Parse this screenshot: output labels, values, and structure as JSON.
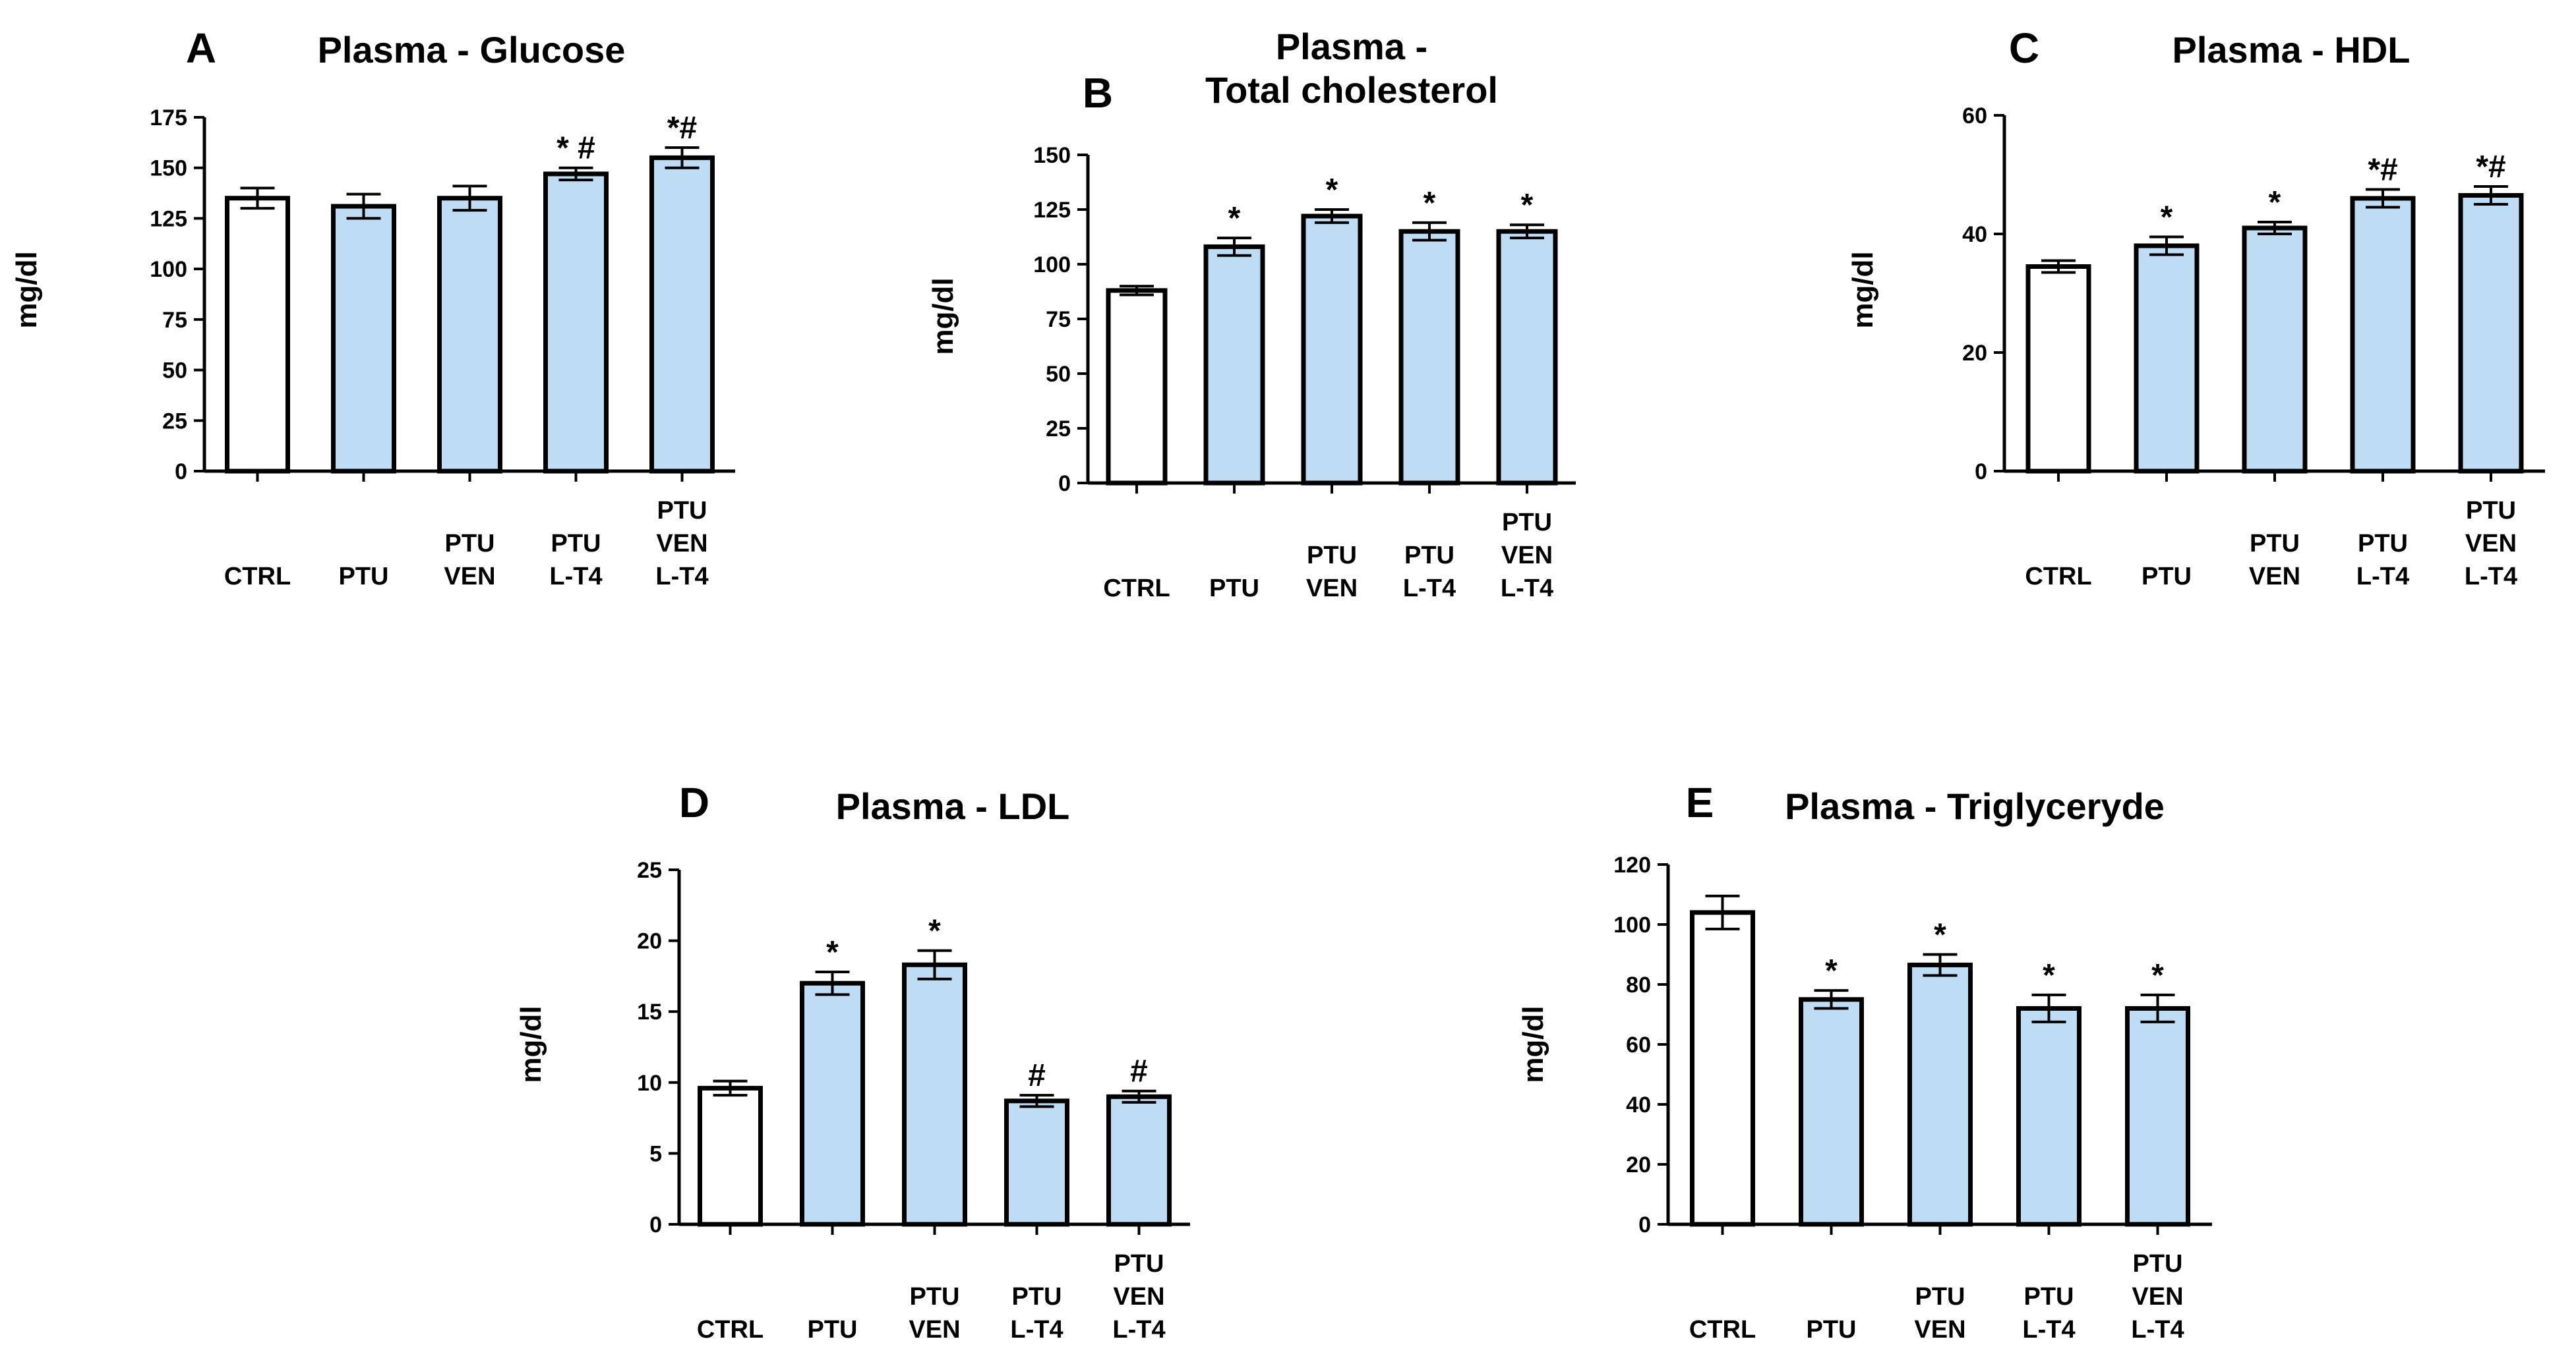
{
  "colors": {
    "ctrl_fill": "#ffffff",
    "treated_fill": "#bfdcf5",
    "stroke": "#000000"
  },
  "chart_data": [
    {
      "type": "bar",
      "letter": "A",
      "title": [
        "Plasma - Glucose"
      ],
      "ylabel": "mg/dl",
      "ylim": [
        0,
        175
      ],
      "yticks": [
        "0",
        "25",
        "50",
        "75",
        "100",
        "125",
        "150",
        "175"
      ],
      "ytick_values": [
        0,
        25,
        50,
        75,
        100,
        125,
        150,
        175
      ],
      "categories": [
        [
          "CTRL"
        ],
        [
          "PTU"
        ],
        [
          "PTU",
          "VEN"
        ],
        [
          "PTU",
          "L-T4"
        ],
        [
          "PTU",
          "VEN",
          "L-T4"
        ]
      ],
      "values": [
        135,
        131,
        135,
        147,
        155
      ],
      "errors": [
        5,
        6,
        6,
        3,
        5
      ],
      "annotations": [
        "",
        "",
        "",
        "* #",
        "*#"
      ]
    },
    {
      "type": "bar",
      "letter": "B",
      "title": [
        "Plasma -",
        "Total cholesterol"
      ],
      "ylabel": "mg/dl",
      "ylim": [
        0,
        150
      ],
      "yticks": [
        "0",
        "25",
        "50",
        "75",
        "100",
        "125",
        "150"
      ],
      "ytick_values": [
        0,
        25,
        50,
        75,
        100,
        125,
        150
      ],
      "categories": [
        [
          "CTRL"
        ],
        [
          "PTU"
        ],
        [
          "PTU",
          "VEN"
        ],
        [
          "PTU",
          "L-T4"
        ],
        [
          "PTU",
          "VEN",
          "L-T4"
        ]
      ],
      "values": [
        88,
        108,
        122,
        115,
        115
      ],
      "errors": [
        2,
        4,
        3,
        4,
        3
      ],
      "annotations": [
        "",
        "*",
        "*",
        "*",
        "*"
      ]
    },
    {
      "type": "bar",
      "letter": "C",
      "title": [
        "Plasma - HDL"
      ],
      "ylabel": "mg/dl",
      "ylim": [
        0,
        60
      ],
      "yticks": [
        "0",
        "20",
        "40",
        "60"
      ],
      "ytick_values": [
        0,
        20,
        40,
        60
      ],
      "categories": [
        [
          "CTRL"
        ],
        [
          "PTU"
        ],
        [
          "PTU",
          "VEN"
        ],
        [
          "PTU",
          "L-T4"
        ],
        [
          "PTU",
          "VEN",
          "L-T4"
        ]
      ],
      "values": [
        34.5,
        38,
        41,
        46,
        46.5
      ],
      "errors": [
        1,
        1.5,
        1,
        1.5,
        1.5
      ],
      "annotations": [
        "",
        "*",
        "*",
        "*#",
        "*#"
      ]
    },
    {
      "type": "bar",
      "letter": "D",
      "title": [
        "Plasma - LDL"
      ],
      "ylabel": "mg/dl",
      "ylim": [
        0,
        25
      ],
      "yticks": [
        "0",
        "5",
        "10",
        "15",
        "20",
        "25"
      ],
      "ytick_values": [
        0,
        5,
        10,
        15,
        20,
        25
      ],
      "categories": [
        [
          "CTRL"
        ],
        [
          "PTU"
        ],
        [
          "PTU",
          "VEN"
        ],
        [
          "PTU",
          "L-T4"
        ],
        [
          "PTU",
          "VEN",
          "L-T4"
        ]
      ],
      "values": [
        9.6,
        17,
        18.3,
        8.7,
        9
      ],
      "errors": [
        0.5,
        0.8,
        1.0,
        0.4,
        0.4
      ],
      "annotations": [
        "",
        "*",
        "*",
        "#",
        "#"
      ]
    },
    {
      "type": "bar",
      "letter": "E",
      "title": [
        "Plasma - Triglyceryde"
      ],
      "ylabel": "mg/dl",
      "ylim": [
        0,
        120
      ],
      "yticks": [
        "0",
        "20",
        "40",
        "60",
        "80",
        "100",
        "120"
      ],
      "ytick_values": [
        0,
        20,
        40,
        60,
        80,
        100,
        120
      ],
      "categories": [
        [
          "CTRL"
        ],
        [
          "PTU"
        ],
        [
          "PTU",
          "VEN"
        ],
        [
          "PTU",
          "L-T4"
        ],
        [
          "PTU",
          "VEN",
          "L-T4"
        ]
      ],
      "values": [
        104,
        75,
        86.5,
        72,
        72
      ],
      "errors": [
        5.5,
        3,
        3.5,
        4.5,
        4.5
      ],
      "annotations": [
        "",
        "*",
        "*",
        "*",
        "*"
      ]
    }
  ]
}
